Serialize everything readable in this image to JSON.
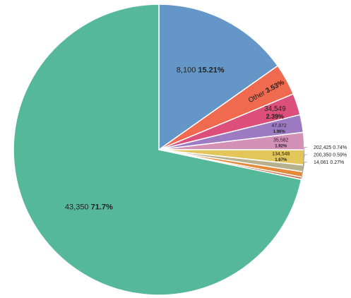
{
  "chart_data": {
    "type": "pie",
    "start_angle_deg": 0,
    "direction": "clockwise",
    "slices": [
      {
        "label": "8,100",
        "percent_text": "15.21%",
        "value": 15.21,
        "color": "#6497c7",
        "label_pos": "inside"
      },
      {
        "label": "Other",
        "percent_text": "3.53%",
        "value": 3.53,
        "color": "#ef6a4e",
        "label_pos": "inside",
        "label_rotate": true
      },
      {
        "label": "34,549",
        "percent_text": "2.39%",
        "value": 2.39,
        "color": "#dc4f7a",
        "label_pos": "inside"
      },
      {
        "label": "47,872",
        "percent_text": "1.96%",
        "value": 1.96,
        "color": "#9d7bc3",
        "label_pos": "inside"
      },
      {
        "label": "35,582",
        "percent_text": "1.92%",
        "value": 1.92,
        "color": "#d491b7",
        "label_pos": "inside"
      },
      {
        "label": "134,548",
        "percent_text": "1.67%",
        "value": 1.67,
        "color": "#e2c65a",
        "label_pos": "inside"
      },
      {
        "label": "202,425",
        "percent_text": "0.74%",
        "value": 0.74,
        "color": "#b6b08c",
        "label_pos": "outside"
      },
      {
        "label": "200,350",
        "percent_text": "0.59%",
        "value": 0.59,
        "color": "#e58a3a",
        "label_pos": "outside"
      },
      {
        "label": "14,061",
        "percent_text": "0.27%",
        "value": 0.27,
        "color": "#c9704b",
        "label_pos": "outside"
      },
      {
        "label": "43,350",
        "percent_text": "71.7%",
        "value": 71.7,
        "color": "#55b999",
        "label_pos": "inside"
      }
    ]
  }
}
